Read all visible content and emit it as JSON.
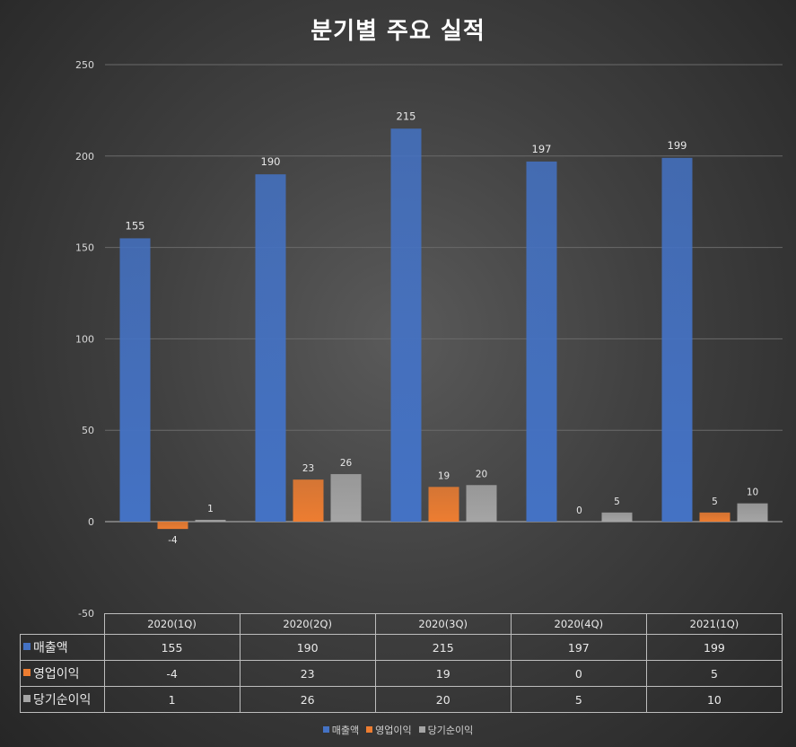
{
  "chart_data": {
    "type": "bar",
    "title": "분기별 주요 실적",
    "categories": [
      "2020(1Q)",
      "2020(2Q)",
      "2020(3Q)",
      "2020(4Q)",
      "2021(1Q)"
    ],
    "series": [
      {
        "name": "매출액",
        "values": [
          155,
          190,
          215,
          197,
          199
        ],
        "color": "#4472c4"
      },
      {
        "name": "영업이익",
        "values": [
          -4,
          23,
          19,
          0,
          5
        ],
        "color": "#ed7d31"
      },
      {
        "name": "당기순이익",
        "values": [
          1,
          26,
          20,
          5,
          10
        ],
        "color": "#a5a5a5"
      }
    ],
    "ylim": [
      -50,
      250
    ],
    "yticks": [
      "250",
      "200",
      "150",
      "100",
      "50",
      "0",
      "-50"
    ],
    "grid": true,
    "legend": "bottom",
    "data_table": true
  }
}
